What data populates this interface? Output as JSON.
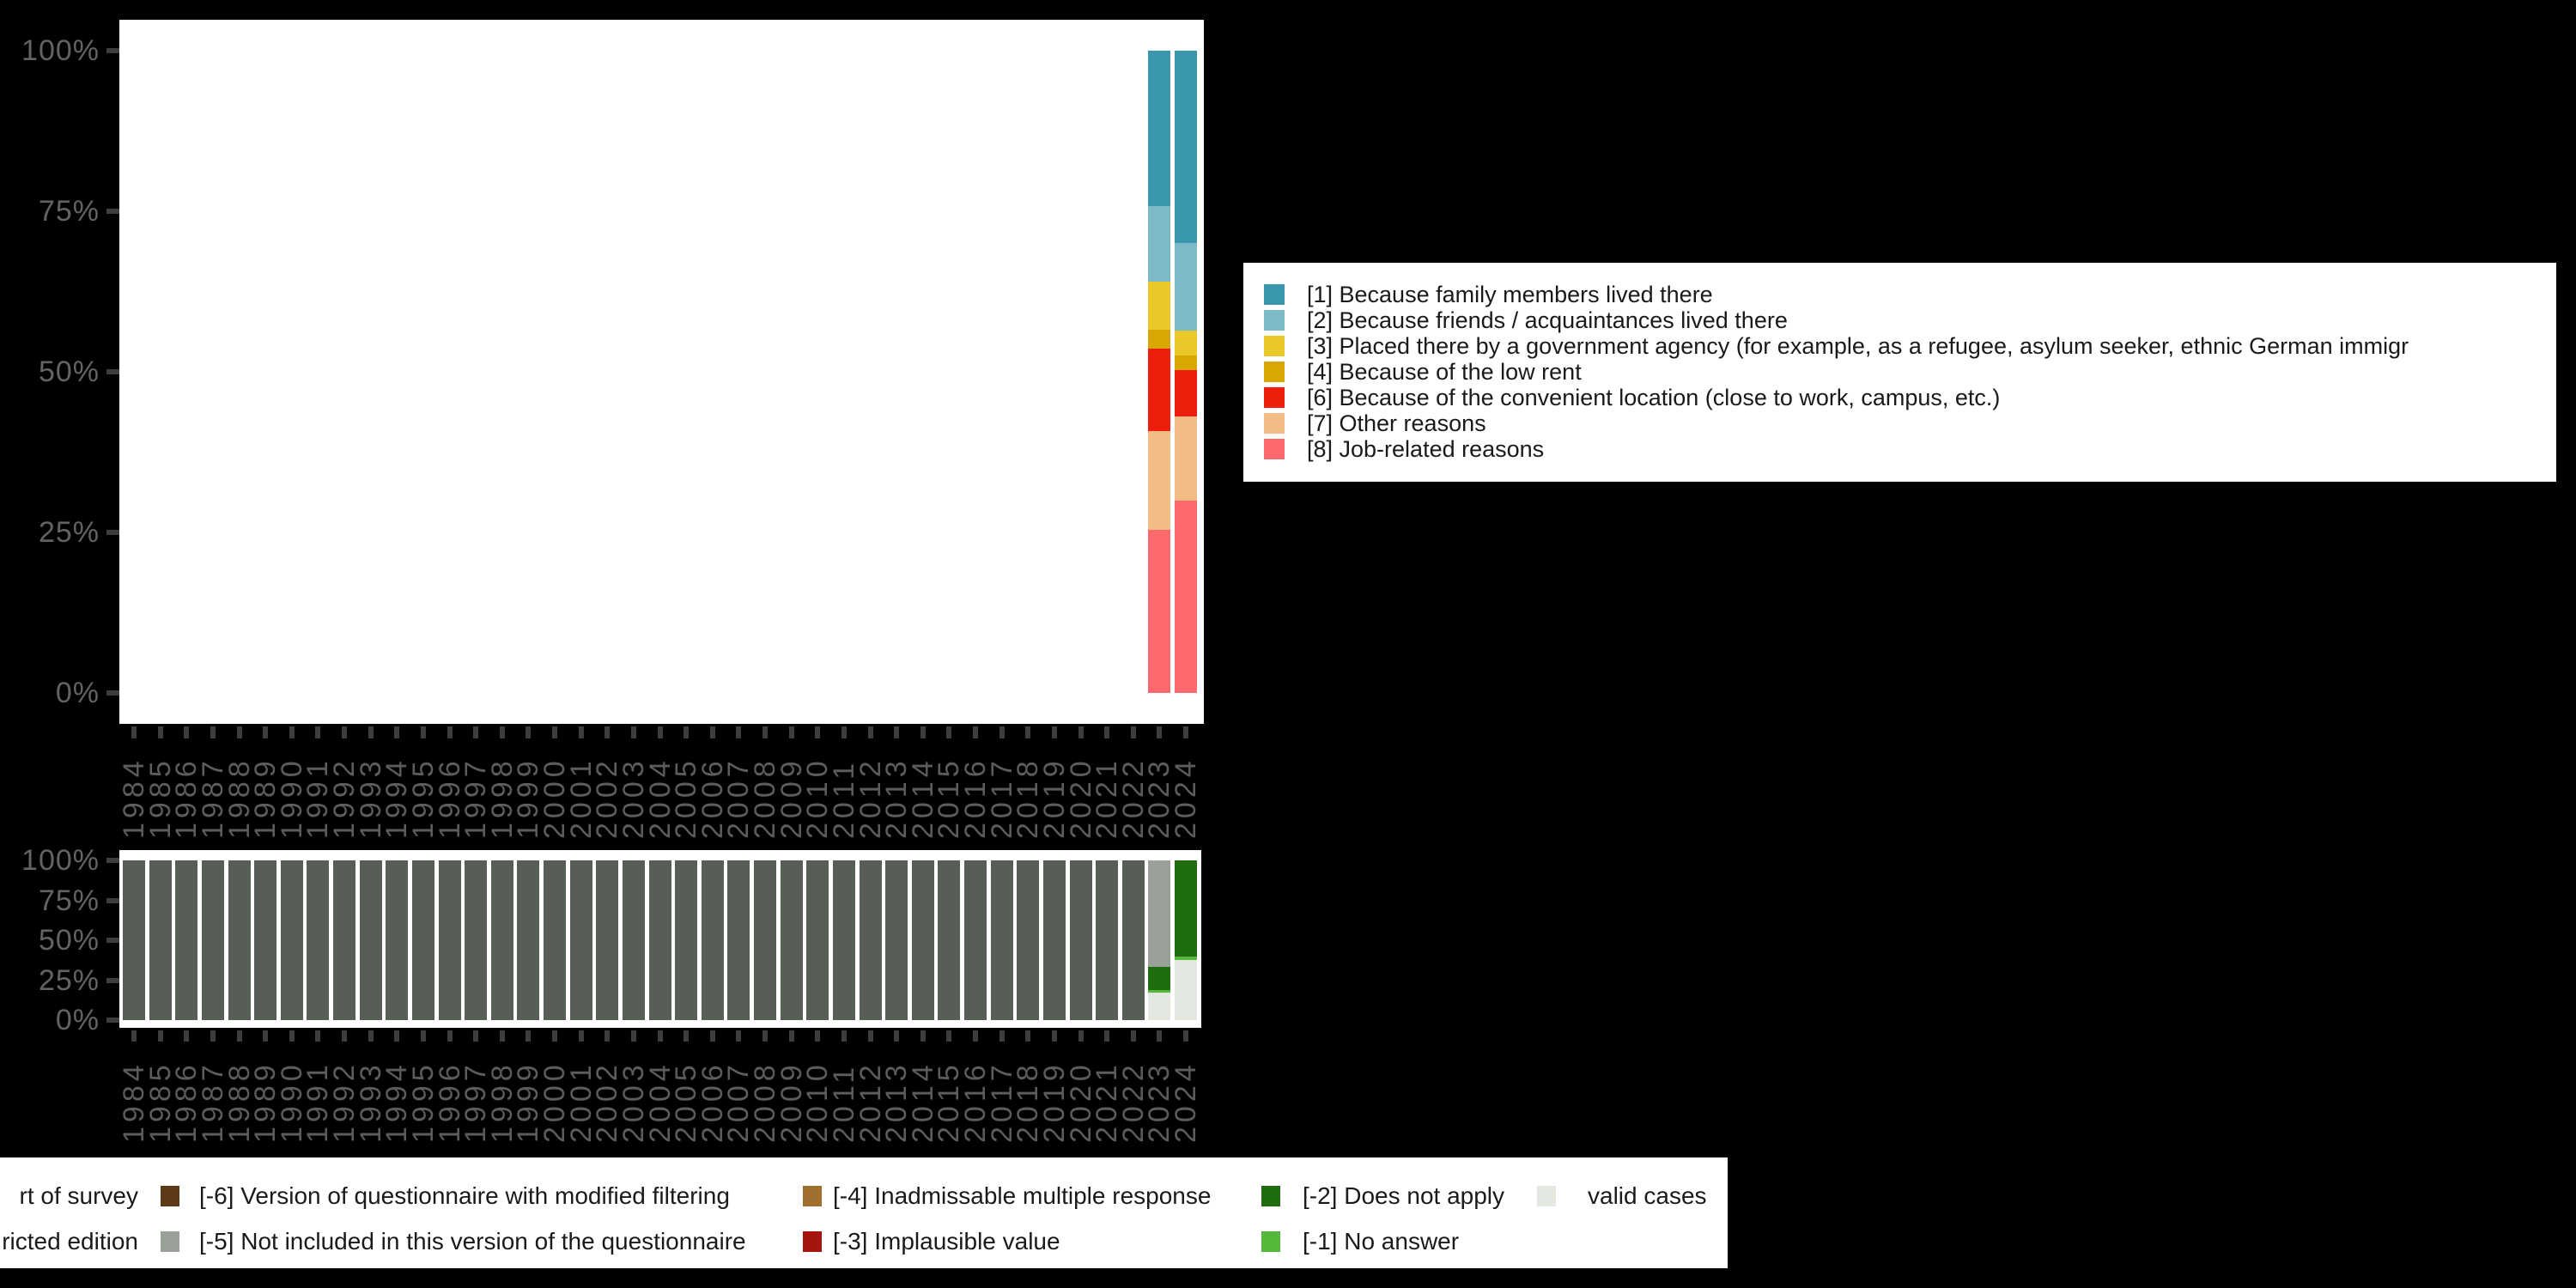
{
  "page": {
    "background": "#000000"
  },
  "years": [
    "1984",
    "1985",
    "1986",
    "1987",
    "1988",
    "1989",
    "1990",
    "1991",
    "1992",
    "1993",
    "1994",
    "1995",
    "1996",
    "1997",
    "1998",
    "1999",
    "2000",
    "2001",
    "2002",
    "2003",
    "2004",
    "2005",
    "2006",
    "2007",
    "2008",
    "2009",
    "2010",
    "2011",
    "2012",
    "2013",
    "2014",
    "2015",
    "2016",
    "2017",
    "2018",
    "2019",
    "2020",
    "2021",
    "2022",
    "2023",
    "2024"
  ],
  "y_tick_labels": [
    "100%",
    "75%",
    "50%",
    "25%",
    "0%"
  ],
  "chart_data": [
    {
      "type": "bar",
      "stacked": true,
      "unit": "percent",
      "title": "",
      "xlabel": "",
      "ylabel": "",
      "ylim": [
        0,
        100
      ],
      "grid": false,
      "legend_position": "right",
      "x": [
        "1984",
        "1985",
        "1986",
        "1987",
        "1988",
        "1989",
        "1990",
        "1991",
        "1992",
        "1993",
        "1994",
        "1995",
        "1996",
        "1997",
        "1998",
        "1999",
        "2000",
        "2001",
        "2002",
        "2003",
        "2004",
        "2005",
        "2006",
        "2007",
        "2008",
        "2009",
        "2010",
        "2011",
        "2012",
        "2013",
        "2014",
        "2015",
        "2016",
        "2017",
        "2018",
        "2019",
        "2020",
        "2021",
        "2022",
        "2023",
        "2024"
      ],
      "series": [
        {
          "name": "[1] Because family members lived there",
          "color": "#3b97ac",
          "values": {
            "2023": 24.2,
            "2024": 30.0
          }
        },
        {
          "name": "[2] Because friends / acquaintances lived there",
          "color": "#7dbac8",
          "values": {
            "2023": 11.8,
            "2024": 13.6
          }
        },
        {
          "name": "[3] Placed there by a government agency (for example, as a refugee, asylum seeker, ethnic German immigr",
          "color": "#eac82a",
          "values": {
            "2023": 7.4,
            "2024": 3.8
          }
        },
        {
          "name": "[4] Because of the low rent",
          "color": "#d8a800",
          "values": {
            "2023": 3.0,
            "2024": 2.4
          }
        },
        {
          "name": "[6] Because of the convenient location (close to work, campus, etc.)",
          "color": "#ee1e0c",
          "values": {
            "2023": 12.8,
            "2024": 7.1
          }
        },
        {
          "name": "[7] Other reasons",
          "color": "#f1bd84",
          "values": {
            "2023": 15.4,
            "2024": 13.1
          }
        },
        {
          "name": "[8] Job-related reasons",
          "color": "#fe696d",
          "values": {
            "2023": 25.4,
            "2024": 30.0
          }
        }
      ]
    },
    {
      "type": "bar",
      "stacked": true,
      "unit": "percent",
      "title": "",
      "xlabel": "",
      "ylabel": "",
      "ylim": [
        0,
        100
      ],
      "grid": false,
      "legend_position": "bottom",
      "x": [
        "1984",
        "1985",
        "1986",
        "1987",
        "1988",
        "1989",
        "1990",
        "1991",
        "1992",
        "1993",
        "1994",
        "1995",
        "1996",
        "1997",
        "1998",
        "1999",
        "2000",
        "2001",
        "2002",
        "2003",
        "2004",
        "2005",
        "2006",
        "2007",
        "2008",
        "2009",
        "2010",
        "2011",
        "2012",
        "2013",
        "2014",
        "2015",
        "2016",
        "2017",
        "2018",
        "2019",
        "2020",
        "2021",
        "2022",
        "2023",
        "2024"
      ],
      "series": [
        {
          "name": "rt of survey",
          "color": "#565e56",
          "range": [
            "1984",
            "2022"
          ],
          "range_value": 100
        },
        {
          "name": "[-5] Not included in this version of the questionnaire",
          "color": "#9aa198",
          "values": {
            "2023": 66.9
          }
        },
        {
          "name": "[-2] Does not apply",
          "color": "#206d10",
          "values": {
            "2023": 14.5,
            "2024": 60.4
          }
        },
        {
          "name": "[-1] No answer",
          "color": "#54b83a",
          "values": {
            "2023": 1.4,
            "2024": 2.2
          }
        },
        {
          "name": "valid cases",
          "color": "#e3e8e0",
          "values": {
            "2023": 17.2,
            "2024": 37.4
          }
        }
      ]
    }
  ],
  "bottom_legend": {
    "rows": [
      [
        {
          "swatch": null,
          "label": "rt of survey"
        },
        {
          "swatch": "#5e3a17",
          "label": "[-6] Version of questionnaire with modified filtering"
        },
        {
          "swatch": "#a0702f",
          "label": "[-4] Inadmissable multiple response"
        },
        {
          "swatch": "#206d10",
          "label": "[-2] Does not apply"
        },
        {
          "swatch": "#e3e8e0",
          "label": "valid cases"
        }
      ],
      [
        {
          "swatch": null,
          "label": "ricted edition"
        },
        {
          "swatch": "#9aa198",
          "label": "[-5] Not included in this version of the questionnaire"
        },
        {
          "swatch": "#a5150e",
          "label": "[-3] Implausible value"
        },
        {
          "swatch": "#54b83a",
          "label": "[-1] No answer"
        }
      ]
    ]
  }
}
